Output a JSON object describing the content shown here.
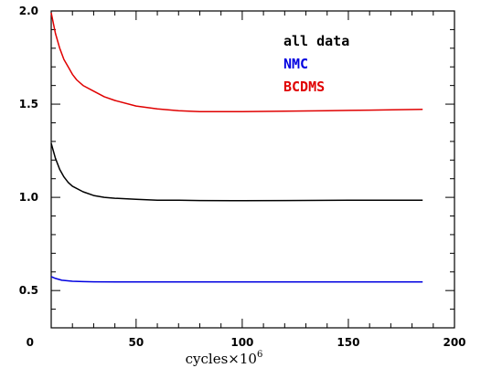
{
  "chart_data": {
    "type": "line",
    "title": "",
    "xlabel": "cycles×10",
    "xlabel_superscript": "6",
    "ylabel": "",
    "xlim": [
      10,
      200
    ],
    "ylim": [
      0.3,
      2.0
    ],
    "x_ticks": [
      0,
      50,
      100,
      150,
      200
    ],
    "x_tick_labels": [
      "0",
      "50",
      "100",
      "150",
      "200"
    ],
    "y_ticks": [
      0.5,
      1.0,
      1.5,
      2.0
    ],
    "y_tick_labels": [
      "0.5",
      "1.0",
      "1.5",
      "2.0"
    ],
    "grid": false,
    "legend_position": "top-right",
    "series": [
      {
        "name": "all data",
        "color": "#000000",
        "x": [
          10,
          12,
          14,
          16,
          18,
          20,
          25,
          30,
          35,
          40,
          50,
          60,
          70,
          80,
          100,
          120,
          140,
          160,
          185
        ],
        "y": [
          1.29,
          1.21,
          1.15,
          1.11,
          1.08,
          1.06,
          1.03,
          1.01,
          1.0,
          0.995,
          0.99,
          0.985,
          0.985,
          0.983,
          0.982,
          0.983,
          0.984,
          0.985,
          0.985
        ]
      },
      {
        "name": "NMC",
        "color": "#0000e0",
        "x": [
          10,
          12,
          15,
          20,
          25,
          30,
          50,
          100,
          150,
          185
        ],
        "y": [
          0.575,
          0.565,
          0.555,
          0.55,
          0.548,
          0.547,
          0.546,
          0.546,
          0.546,
          0.546
        ]
      },
      {
        "name": "BCDMS",
        "color": "#e00000",
        "x": [
          10,
          12,
          14,
          16,
          18,
          20,
          22,
          25,
          30,
          35,
          40,
          50,
          60,
          70,
          80,
          100,
          120,
          140,
          160,
          185
        ],
        "y": [
          1.99,
          1.88,
          1.8,
          1.74,
          1.7,
          1.66,
          1.63,
          1.6,
          1.57,
          1.54,
          1.52,
          1.49,
          1.475,
          1.465,
          1.46,
          1.46,
          1.462,
          1.465,
          1.468,
          1.472
        ]
      }
    ]
  }
}
